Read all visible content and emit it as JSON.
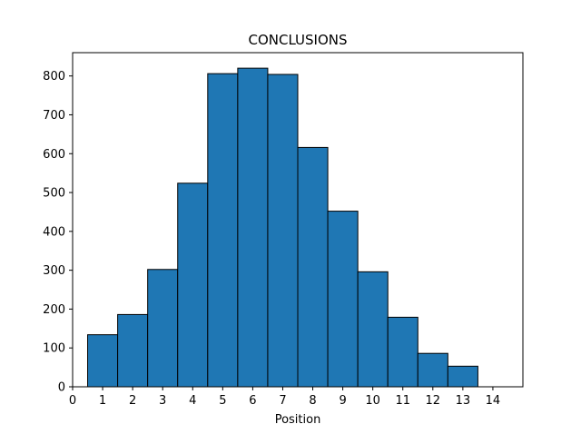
{
  "chart_data": {
    "type": "bar",
    "title": "CONCLUSIONS",
    "xlabel": "Position",
    "ylabel": "",
    "categories": [
      "1",
      "2",
      "3",
      "4",
      "5",
      "6",
      "7",
      "8",
      "9",
      "10",
      "11",
      "12",
      "13"
    ],
    "values": [
      134,
      186,
      302,
      524,
      806,
      820,
      804,
      616,
      452,
      296,
      179,
      86,
      53
    ],
    "bar_color": "#1f77b4",
    "edge_color": "#000000",
    "xlim": [
      0,
      15
    ],
    "ylim": [
      0,
      860
    ],
    "x_ticks": [
      0,
      1,
      2,
      3,
      4,
      5,
      6,
      7,
      8,
      9,
      10,
      11,
      12,
      13,
      14
    ],
    "y_ticks": [
      0,
      100,
      200,
      300,
      400,
      500,
      600,
      700,
      800
    ],
    "grid": false,
    "legend": "none"
  }
}
